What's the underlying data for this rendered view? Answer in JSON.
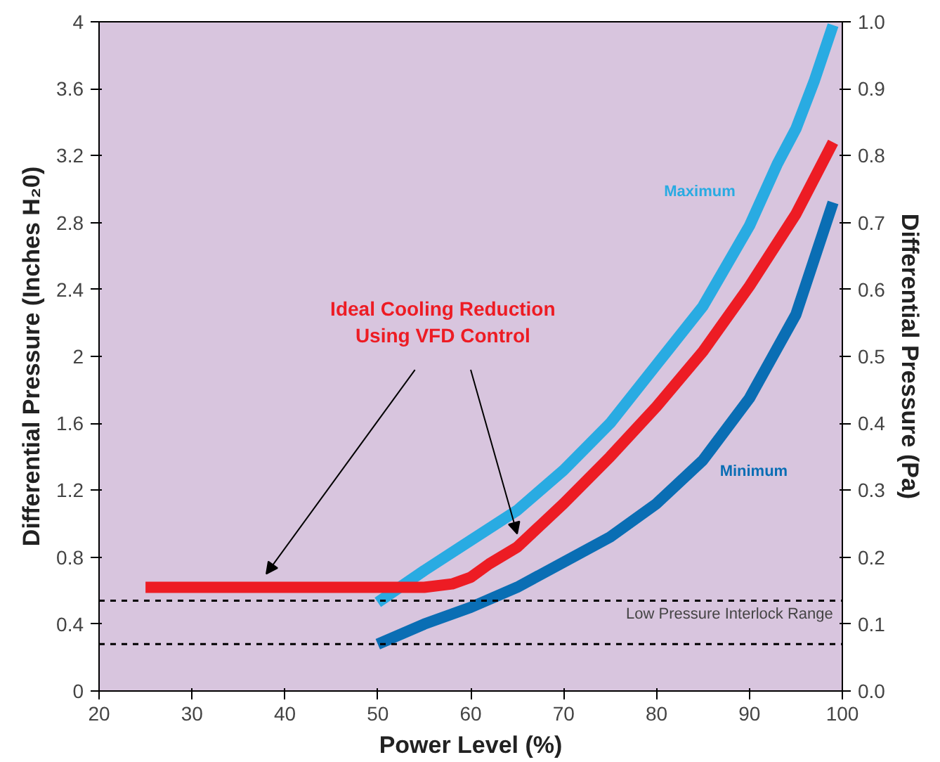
{
  "chart_data": {
    "type": "line",
    "xlabel": "Power Level (%)",
    "ylabel": "Differential Pressure (Inches H₂0)",
    "y2label": "Differential Pressure (Pa)",
    "xlim": [
      20,
      100
    ],
    "xticks": [
      20,
      30,
      40,
      50,
      60,
      70,
      80,
      90,
      100
    ],
    "ylim": [
      0,
      4
    ],
    "yticks": [
      0,
      0.4,
      0.8,
      1.2,
      1.6,
      2,
      2.4,
      2.8,
      3.2,
      3.6,
      4
    ],
    "y2lim": [
      0,
      1
    ],
    "y2ticks": [
      {
        "value": 0,
        "label": "0.0"
      },
      {
        "value": 0.1,
        "label": "0.1"
      },
      {
        "value": 0.2,
        "label": "0.2"
      },
      {
        "value": 0.3,
        "label": "0.3"
      },
      {
        "value": 0.4,
        "label": "0.4"
      },
      {
        "value": 0.5,
        "label": "0.5"
      },
      {
        "value": 0.6,
        "label": "0.6"
      },
      {
        "value": 0.7,
        "label": "0.7"
      },
      {
        "value": 0.8,
        "label": "0.8"
      },
      {
        "value": 0.9,
        "label": "0.9"
      },
      {
        "value": 1,
        "label": "1.0"
      }
    ],
    "grid": false,
    "marker": "none",
    "line_style": "solid",
    "series": [
      {
        "name": "Maximum",
        "color": "#29abe2",
        "x": [
          50,
          55,
          60,
          65,
          70,
          75,
          80,
          85,
          90,
          93,
          95,
          97,
          99
        ],
        "values": [
          0.53,
          0.72,
          0.9,
          1.08,
          1.32,
          1.6,
          1.95,
          2.3,
          2.78,
          3.15,
          3.36,
          3.65,
          3.98
        ]
      },
      {
        "name": "Ideal Cooling Reduction\nUsing VFD Control",
        "color": "#ed1c24",
        "x": [
          25,
          40,
          55,
          58,
          60,
          62,
          65,
          70,
          75,
          80,
          85,
          90,
          95,
          99
        ],
        "values": [
          0.62,
          0.62,
          0.62,
          0.64,
          0.68,
          0.76,
          0.86,
          1.12,
          1.4,
          1.7,
          2.03,
          2.42,
          2.85,
          3.28
        ]
      },
      {
        "name": "Minimum",
        "color": "#0a6eb4",
        "x": [
          50,
          55,
          60,
          65,
          70,
          75,
          80,
          85,
          90,
          95,
          99
        ],
        "values": [
          0.28,
          0.4,
          0.5,
          0.62,
          0.77,
          0.92,
          1.12,
          1.38,
          1.75,
          2.25,
          2.92
        ]
      }
    ],
    "ref_lines": [
      {
        "axis": "y",
        "value": 0.54,
        "label": "Low Pressure Interlock Range",
        "color": "#000000",
        "line_style": "dashed"
      },
      {
        "axis": "y",
        "value": 0.28,
        "label": null,
        "color": "#000000",
        "line_style": "dashed"
      }
    ]
  }
}
